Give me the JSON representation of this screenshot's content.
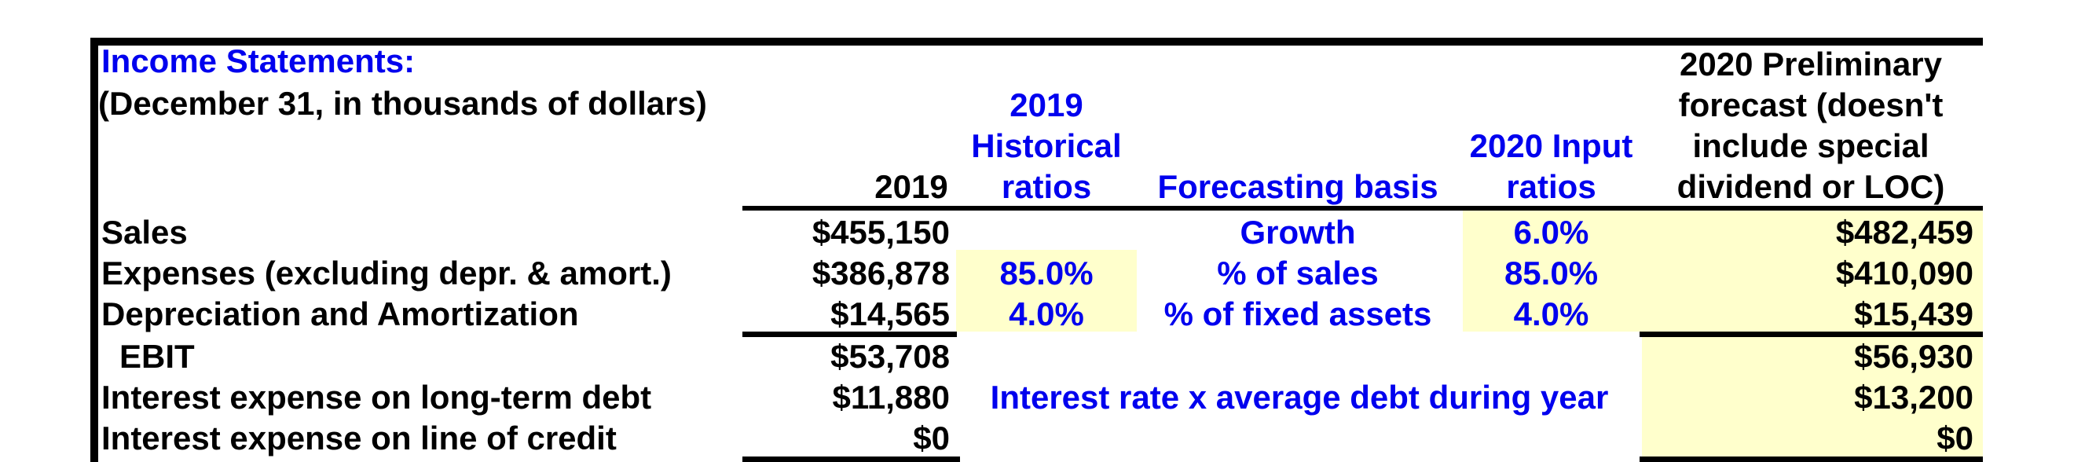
{
  "title": "Income Statements:",
  "subtitle": "(December 31, in thousands of dollars)",
  "colors": {
    "accent_blue": "#0000EE",
    "highlight_yellow": "#FFFFCC",
    "text_black": "#000000",
    "background": "#FFFFFF"
  },
  "headers": {
    "col2019": "2019",
    "historical": [
      "2019",
      "Historical",
      "ratios"
    ],
    "forecasting_basis": "Forecasting basis",
    "input": [
      "2020 Input",
      "ratios"
    ],
    "forecast": [
      "2020 Preliminary",
      "forecast (doesn't",
      "include special",
      "dividend or LOC)"
    ]
  },
  "rows": [
    {
      "label": "Sales",
      "y2019": "$455,150",
      "hist": "",
      "basis": "Growth",
      "input": "6.0%",
      "forecast": "$482,459"
    },
    {
      "label": "Expenses (excluding depr. & amort.)",
      "y2019": "$386,878",
      "hist": "85.0%",
      "basis": "% of sales",
      "input": "85.0%",
      "forecast": "$410,090"
    },
    {
      "label": "Depreciation and Amortization",
      "y2019": "$14,565",
      "hist": "4.0%",
      "basis": "% of fixed assets",
      "input": "4.0%",
      "forecast": "$15,439"
    },
    {
      "label": "EBIT",
      "y2019": "$53,708",
      "forecast": "$56,930"
    },
    {
      "label": "Interest expense on long-term debt",
      "y2019": "$11,880",
      "note": "Interest rate x average debt during year",
      "forecast": "$13,200"
    },
    {
      "label": "Interest expense on line of credit",
      "y2019": "$0",
      "forecast": "$0"
    }
  ]
}
